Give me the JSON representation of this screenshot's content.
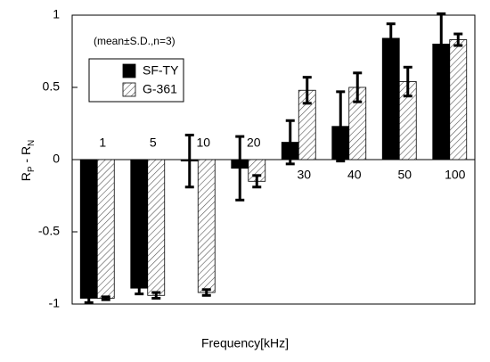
{
  "chart_data": {
    "type": "bar",
    "y_label": [
      "R",
      "P",
      " - R",
      "N"
    ],
    "x_label": "Frequency[kHz]",
    "annotation": "(mean±S.D.,n=3)",
    "categories": [
      "1",
      "5",
      "10",
      "20",
      "30",
      "40",
      "50",
      "100"
    ],
    "series": [
      {
        "name": "SF-TY",
        "color": "#000000",
        "values": [
          -0.96,
          -0.89,
          -0.01,
          -0.06,
          0.12,
          0.23,
          0.84,
          0.8
        ],
        "errors": [
          0.03,
          0.04,
          0.18,
          0.22,
          0.15,
          0.24,
          0.1,
          0.21
        ]
      },
      {
        "name": "G-361",
        "color": "hatch",
        "values": [
          -0.96,
          -0.94,
          -0.92,
          -0.15,
          0.48,
          0.5,
          0.54,
          0.83
        ],
        "errors": [
          0.01,
          0.02,
          0.02,
          0.04,
          0.09,
          0.1,
          0.1,
          0.04
        ]
      }
    ],
    "ylim": [
      -1,
      1
    ],
    "yticks": [
      -1,
      -0.5,
      0,
      0.5,
      1
    ],
    "grid": false,
    "legend": "upper left"
  }
}
